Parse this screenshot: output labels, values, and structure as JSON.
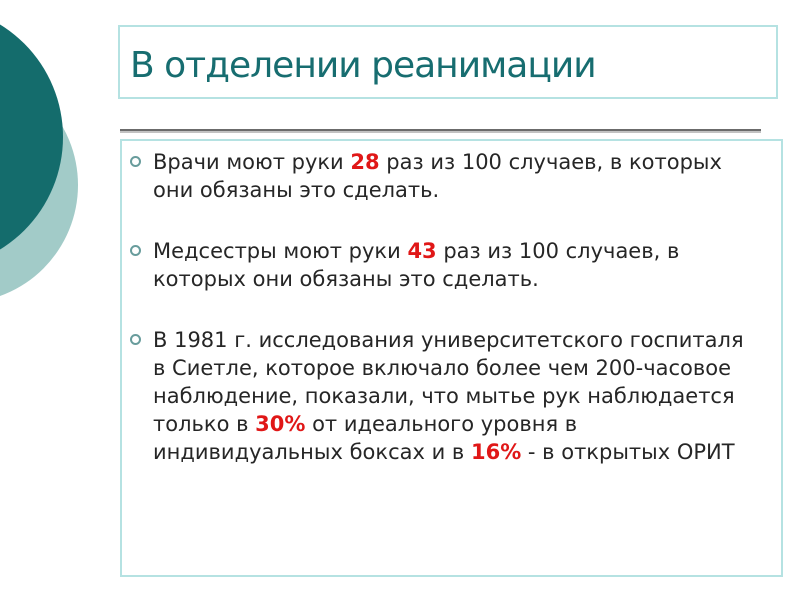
{
  "slide": {
    "title": "В отделении реанимации",
    "bullets": [
      {
        "runs": [
          {
            "text": "Врачи моют руки "
          },
          {
            "text": "28",
            "em": true
          },
          {
            "text": " раз из 100 случаев, в которых"
          },
          {
            "br": true
          },
          {
            "text": "они обязаны это сделать."
          }
        ]
      },
      {
        "runs": [
          {
            "text": "Медсестры моют руки "
          },
          {
            "text": "43",
            "em": true
          },
          {
            "text": " раз из 100 случаев, в"
          },
          {
            "br": true
          },
          {
            "text": "которых они обязаны это сделать."
          }
        ]
      },
      {
        "runs": [
          {
            "text": "В 1981 г. исследования университетского госпиталя"
          },
          {
            "br": true
          },
          {
            "text": "в Сиетле, которое включало более чем 200-часовое"
          },
          {
            "br": true
          },
          {
            "text": "наблюдение, показали, что мытье рук наблюдается"
          },
          {
            "br": true
          },
          {
            "text": "только в "
          },
          {
            "text": "30%",
            "em": true
          },
          {
            "text": " от идеального уровня в"
          },
          {
            "br": true
          },
          {
            "text": "индивидуальных боксах и в "
          },
          {
            "text": "16%",
            "em": true
          },
          {
            "text": " - в открытых ОРИТ"
          }
        ]
      }
    ],
    "colors": {
      "accent_dark": "#146c6c",
      "accent_light": "#a2cbc8",
      "title_text": "#176d70",
      "box_border": "#b5e2e2",
      "body_text": "#262626",
      "highlight_red": "#e01717",
      "divider_gray": "#6b6b6b",
      "bullet_ring": "#689c9c"
    }
  }
}
